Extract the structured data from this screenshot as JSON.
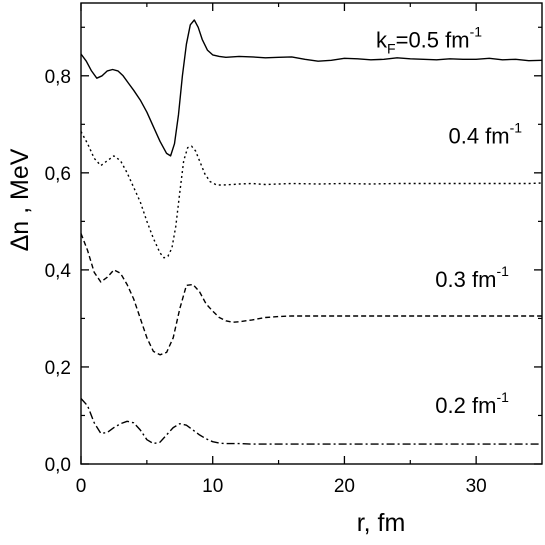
{
  "chart_data": {
    "type": "line",
    "xlabel": "r, fm",
    "ylabel": "Δn , MeV",
    "xlim": [
      0,
      35
    ],
    "ylim": [
      0.0,
      0.95
    ],
    "xticks": [
      0,
      10,
      20,
      30
    ],
    "xtick_labels": [
      "0",
      "10",
      "20",
      "30"
    ],
    "yticks": [
      0.0,
      0.2,
      0.4,
      0.6,
      0.8
    ],
    "ytick_labels": [
      "0,0",
      "0,2",
      "0,4",
      "0,6",
      "0,8"
    ],
    "grid": false,
    "legend": "none",
    "series": [
      {
        "label": "kF=0.5 fm-1",
        "style": "solid",
        "x": [
          0,
          0.4,
          0.8,
          1.2,
          1.6,
          2.0,
          2.4,
          2.8,
          3.2,
          3.6,
          4.0,
          4.5,
          5.0,
          5.5,
          6.0,
          6.5,
          6.8,
          7.1,
          7.4,
          7.7,
          8.0,
          8.3,
          8.6,
          8.9,
          9.2,
          9.6,
          10.0,
          10.5,
          11,
          12,
          13,
          14,
          15,
          16,
          17,
          18,
          19,
          20,
          21,
          22,
          23,
          24,
          25,
          26,
          27,
          28,
          29,
          30,
          31,
          32,
          33,
          34,
          35
        ],
        "y": [
          0.845,
          0.83,
          0.81,
          0.795,
          0.8,
          0.81,
          0.813,
          0.81,
          0.8,
          0.785,
          0.77,
          0.75,
          0.725,
          0.695,
          0.665,
          0.64,
          0.635,
          0.66,
          0.72,
          0.8,
          0.865,
          0.905,
          0.915,
          0.9,
          0.875,
          0.853,
          0.843,
          0.84,
          0.838,
          0.84,
          0.839,
          0.837,
          0.838,
          0.839,
          0.834,
          0.83,
          0.832,
          0.836,
          0.835,
          0.833,
          0.834,
          0.837,
          0.835,
          0.834,
          0.833,
          0.835,
          0.834,
          0.834,
          0.836,
          0.833,
          0.834,
          0.831,
          0.832
        ]
      },
      {
        "label": "0.4 fm-1",
        "style": "dotted",
        "x": [
          0,
          0.5,
          1.0,
          1.5,
          2.0,
          2.5,
          3.0,
          3.5,
          4.0,
          4.5,
          5.0,
          5.5,
          6.0,
          6.3,
          6.6,
          6.9,
          7.2,
          7.5,
          7.8,
          8.1,
          8.4,
          8.7,
          9.0,
          9.4,
          9.8,
          10.3,
          10.8,
          11.5,
          12,
          13,
          14,
          16,
          18,
          20,
          22,
          24,
          26,
          28,
          30,
          32,
          34,
          35
        ],
        "y": [
          0.685,
          0.66,
          0.63,
          0.615,
          0.625,
          0.635,
          0.625,
          0.6,
          0.57,
          0.54,
          0.5,
          0.465,
          0.435,
          0.425,
          0.428,
          0.445,
          0.49,
          0.56,
          0.625,
          0.652,
          0.655,
          0.645,
          0.625,
          0.598,
          0.582,
          0.575,
          0.575,
          0.576,
          0.577,
          0.578,
          0.576,
          0.578,
          0.577,
          0.578,
          0.577,
          0.578,
          0.578,
          0.578,
          0.578,
          0.578,
          0.578,
          0.579
        ]
      },
      {
        "label": "0.3 fm-1",
        "style": "dashed",
        "x": [
          0,
          0.5,
          1.0,
          1.5,
          2.0,
          2.5,
          3.0,
          3.5,
          4.0,
          4.5,
          5.0,
          5.5,
          6.0,
          6.5,
          7.0,
          7.5,
          8.0,
          8.5,
          9.0,
          9.5,
          10.0,
          10.5,
          11.0,
          11.5,
          12,
          13,
          14,
          15,
          16,
          18,
          20,
          22,
          24,
          26,
          28,
          30,
          32,
          34,
          35
        ],
        "y": [
          0.475,
          0.44,
          0.395,
          0.375,
          0.385,
          0.4,
          0.393,
          0.37,
          0.34,
          0.3,
          0.26,
          0.232,
          0.225,
          0.23,
          0.26,
          0.32,
          0.368,
          0.37,
          0.355,
          0.33,
          0.315,
          0.302,
          0.295,
          0.292,
          0.293,
          0.297,
          0.302,
          0.304,
          0.305,
          0.305,
          0.305,
          0.305,
          0.305,
          0.305,
          0.305,
          0.305,
          0.305,
          0.305,
          0.305
        ]
      },
      {
        "label": "0.2 fm-1",
        "style": "dashdot",
        "x": [
          0,
          0.5,
          1.0,
          1.5,
          2.0,
          2.5,
          3.0,
          3.5,
          4.0,
          4.5,
          5.0,
          5.5,
          6.0,
          6.5,
          7.0,
          7.5,
          8.0,
          8.5,
          9.0,
          9.5,
          10.0,
          10.5,
          11,
          12,
          13,
          14,
          15,
          16,
          18,
          20,
          22,
          24,
          26,
          28,
          30,
          32,
          34,
          35
        ],
        "y": [
          0.135,
          0.12,
          0.085,
          0.063,
          0.065,
          0.075,
          0.083,
          0.088,
          0.085,
          0.07,
          0.05,
          0.042,
          0.045,
          0.06,
          0.075,
          0.083,
          0.08,
          0.07,
          0.06,
          0.052,
          0.046,
          0.043,
          0.042,
          0.042,
          0.041,
          0.041,
          0.041,
          0.041,
          0.041,
          0.041,
          0.041,
          0.041,
          0.041,
          0.041,
          0.041,
          0.041,
          0.041,
          0.041
        ]
      }
    ],
    "annotations": [
      {
        "text_main": "k",
        "text_sub": "F",
        "text_tail": "=0.5 fm",
        "text_sup": "-1",
        "x": 22.4,
        "y": 0.858
      },
      {
        "text_main": "0.4 fm",
        "text_sup": "-1",
        "x": 27.9,
        "y": 0.66
      },
      {
        "text_main": "0.3 fm",
        "text_sup": "-1",
        "x": 26.9,
        "y": 0.365
      },
      {
        "text_main": "0.2 fm",
        "text_sup": "-1",
        "x": 26.9,
        "y": 0.105
      }
    ]
  }
}
